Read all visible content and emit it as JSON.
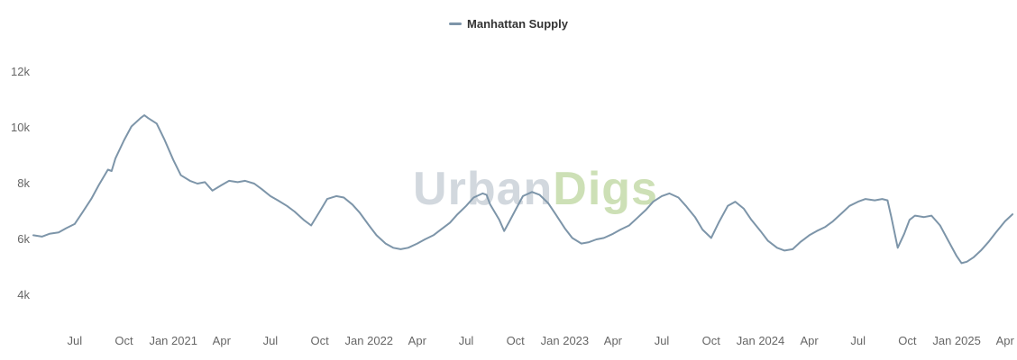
{
  "chart": {
    "legend": {
      "label": "Manhattan Supply",
      "marker_color": "#7d95a9"
    }
  },
  "watermark": {
    "part1": "Urban",
    "part2": "Digs",
    "part1_color": "#d2d8de",
    "part2_color": "#cde0b6"
  },
  "chart_data": {
    "type": "line",
    "title": "Manhattan Supply",
    "legend_position": "top-center",
    "grid": false,
    "series": [
      {
        "name": "Manhattan Supply",
        "color": "#7d95a9",
        "points": [
          [
            "2020-04-15",
            6150
          ],
          [
            "2020-05-01",
            6100
          ],
          [
            "2020-05-15",
            6200
          ],
          [
            "2020-06-01",
            6250
          ],
          [
            "2020-06-15",
            6400
          ],
          [
            "2020-07-01",
            6550
          ],
          [
            "2020-07-15",
            6950
          ],
          [
            "2020-08-01",
            7450
          ],
          [
            "2020-08-15",
            7950
          ],
          [
            "2020-09-01",
            8500
          ],
          [
            "2020-09-08",
            8450
          ],
          [
            "2020-09-15",
            8900
          ],
          [
            "2020-10-01",
            9550
          ],
          [
            "2020-10-15",
            10050
          ],
          [
            "2020-11-01",
            10350
          ],
          [
            "2020-11-08",
            10450
          ],
          [
            "2020-11-15",
            10350
          ],
          [
            "2020-12-01",
            10150
          ],
          [
            "2020-12-15",
            9600
          ],
          [
            "2021-01-01",
            8850
          ],
          [
            "2021-01-15",
            8300
          ],
          [
            "2021-02-01",
            8100
          ],
          [
            "2021-02-15",
            8000
          ],
          [
            "2021-03-01",
            8050
          ],
          [
            "2021-03-15",
            7750
          ],
          [
            "2021-04-01",
            7950
          ],
          [
            "2021-04-15",
            8100
          ],
          [
            "2021-05-01",
            8050
          ],
          [
            "2021-05-15",
            8100
          ],
          [
            "2021-06-01",
            8000
          ],
          [
            "2021-06-15",
            7800
          ],
          [
            "2021-07-01",
            7550
          ],
          [
            "2021-07-15",
            7400
          ],
          [
            "2021-08-01",
            7200
          ],
          [
            "2021-08-15",
            7000
          ],
          [
            "2021-09-01",
            6700
          ],
          [
            "2021-09-15",
            6500
          ],
          [
            "2021-10-01",
            7000
          ],
          [
            "2021-10-15",
            7450
          ],
          [
            "2021-11-01",
            7550
          ],
          [
            "2021-11-15",
            7500
          ],
          [
            "2021-12-01",
            7250
          ],
          [
            "2021-12-15",
            6950
          ],
          [
            "2022-01-01",
            6500
          ],
          [
            "2022-01-15",
            6150
          ],
          [
            "2022-02-01",
            5850
          ],
          [
            "2022-02-15",
            5700
          ],
          [
            "2022-03-01",
            5650
          ],
          [
            "2022-03-15",
            5700
          ],
          [
            "2022-04-01",
            5850
          ],
          [
            "2022-04-15",
            6000
          ],
          [
            "2022-05-01",
            6150
          ],
          [
            "2022-05-15",
            6350
          ],
          [
            "2022-06-01",
            6600
          ],
          [
            "2022-06-15",
            6900
          ],
          [
            "2022-07-01",
            7200
          ],
          [
            "2022-07-15",
            7500
          ],
          [
            "2022-08-01",
            7650
          ],
          [
            "2022-08-08",
            7600
          ],
          [
            "2022-08-15",
            7250
          ],
          [
            "2022-09-01",
            6700
          ],
          [
            "2022-09-10",
            6300
          ],
          [
            "2022-09-20",
            6650
          ],
          [
            "2022-10-01",
            7050
          ],
          [
            "2022-10-15",
            7550
          ],
          [
            "2022-11-01",
            7700
          ],
          [
            "2022-11-15",
            7600
          ],
          [
            "2022-12-01",
            7300
          ],
          [
            "2022-12-15",
            6900
          ],
          [
            "2023-01-01",
            6400
          ],
          [
            "2023-01-15",
            6050
          ],
          [
            "2023-02-01",
            5850
          ],
          [
            "2023-02-15",
            5900
          ],
          [
            "2023-03-01",
            6000
          ],
          [
            "2023-03-15",
            6050
          ],
          [
            "2023-04-01",
            6200
          ],
          [
            "2023-04-15",
            6350
          ],
          [
            "2023-05-01",
            6500
          ],
          [
            "2023-05-15",
            6750
          ],
          [
            "2023-06-01",
            7050
          ],
          [
            "2023-06-15",
            7350
          ],
          [
            "2023-07-01",
            7550
          ],
          [
            "2023-07-15",
            7650
          ],
          [
            "2023-08-01",
            7500
          ],
          [
            "2023-08-15",
            7200
          ],
          [
            "2023-09-01",
            6800
          ],
          [
            "2023-09-15",
            6350
          ],
          [
            "2023-10-01",
            6050
          ],
          [
            "2023-10-15",
            6600
          ],
          [
            "2023-11-01",
            7200
          ],
          [
            "2023-11-15",
            7350
          ],
          [
            "2023-12-01",
            7100
          ],
          [
            "2023-12-15",
            6700
          ],
          [
            "2024-01-01",
            6300
          ],
          [
            "2024-01-15",
            5950
          ],
          [
            "2024-02-01",
            5700
          ],
          [
            "2024-02-15",
            5600
          ],
          [
            "2024-03-01",
            5650
          ],
          [
            "2024-03-15",
            5900
          ],
          [
            "2024-04-01",
            6150
          ],
          [
            "2024-04-15",
            6300
          ],
          [
            "2024-05-01",
            6450
          ],
          [
            "2024-05-15",
            6650
          ],
          [
            "2024-06-01",
            6950
          ],
          [
            "2024-06-15",
            7200
          ],
          [
            "2024-07-01",
            7350
          ],
          [
            "2024-07-15",
            7450
          ],
          [
            "2024-08-01",
            7400
          ],
          [
            "2024-08-15",
            7450
          ],
          [
            "2024-08-25",
            7400
          ],
          [
            "2024-09-01",
            6800
          ],
          [
            "2024-09-13",
            5700
          ],
          [
            "2024-09-25",
            6200
          ],
          [
            "2024-10-05",
            6700
          ],
          [
            "2024-10-15",
            6850
          ],
          [
            "2024-11-01",
            6800
          ],
          [
            "2024-11-15",
            6850
          ],
          [
            "2024-12-01",
            6500
          ],
          [
            "2024-12-15",
            6000
          ],
          [
            "2025-01-01",
            5400
          ],
          [
            "2025-01-10",
            5150
          ],
          [
            "2025-01-20",
            5200
          ],
          [
            "2025-02-01",
            5350
          ],
          [
            "2025-02-15",
            5600
          ],
          [
            "2025-03-01",
            5900
          ],
          [
            "2025-03-15",
            6250
          ],
          [
            "2025-04-01",
            6650
          ],
          [
            "2025-04-15",
            6900
          ]
        ]
      }
    ],
    "x_axis": {
      "type": "datetime",
      "min": "2020-04-15",
      "max": "2025-04-15",
      "ticks": [
        {
          "date": "2020-07-01",
          "label": "Jul"
        },
        {
          "date": "2020-10-01",
          "label": "Oct"
        },
        {
          "date": "2021-01-01",
          "label": "Jan 2021"
        },
        {
          "date": "2021-04-01",
          "label": "Apr"
        },
        {
          "date": "2021-07-01",
          "label": "Jul"
        },
        {
          "date": "2021-10-01",
          "label": "Oct"
        },
        {
          "date": "2022-01-01",
          "label": "Jan 2022"
        },
        {
          "date": "2022-04-01",
          "label": "Apr"
        },
        {
          "date": "2022-07-01",
          "label": "Jul"
        },
        {
          "date": "2022-10-01",
          "label": "Oct"
        },
        {
          "date": "2023-01-01",
          "label": "Jan 2023"
        },
        {
          "date": "2023-04-01",
          "label": "Apr"
        },
        {
          "date": "2023-07-01",
          "label": "Jul"
        },
        {
          "date": "2023-10-01",
          "label": "Oct"
        },
        {
          "date": "2024-01-01",
          "label": "Jan 2024"
        },
        {
          "date": "2024-04-01",
          "label": "Apr"
        },
        {
          "date": "2024-07-01",
          "label": "Jul"
        },
        {
          "date": "2024-10-01",
          "label": "Oct"
        },
        {
          "date": "2025-01-01",
          "label": "Jan 2025"
        },
        {
          "date": "2025-04-01",
          "label": "Apr"
        }
      ]
    },
    "y_axis": {
      "min": 4000,
      "max": 12000,
      "ticks": [
        {
          "value": 12000,
          "label": "12k"
        },
        {
          "value": 10000,
          "label": "10k"
        },
        {
          "value": 8000,
          "label": "8k"
        },
        {
          "value": 6000,
          "label": "6k"
        },
        {
          "value": 4000,
          "label": "4k"
        }
      ]
    }
  }
}
